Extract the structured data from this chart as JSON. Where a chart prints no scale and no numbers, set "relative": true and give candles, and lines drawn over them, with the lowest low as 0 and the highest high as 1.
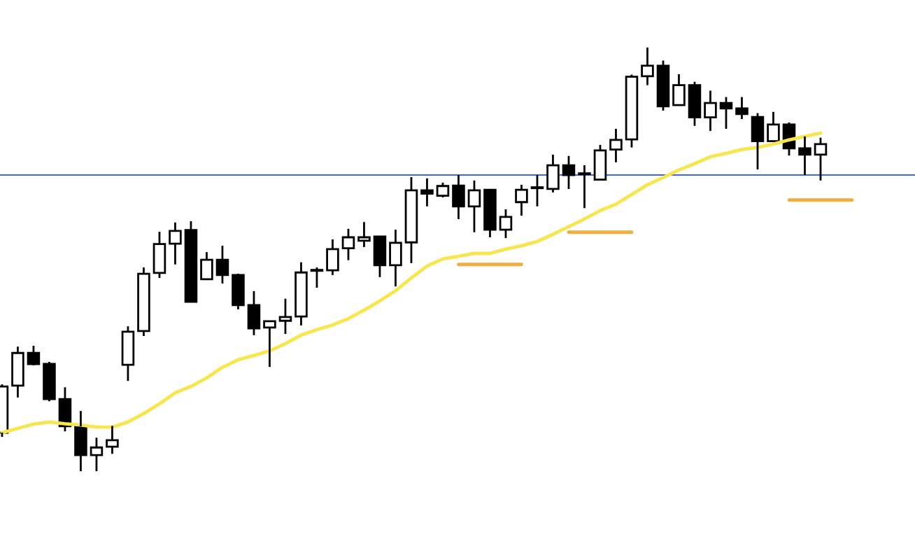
{
  "chart_data": {
    "type": "candlestick",
    "relative": true,
    "categories": [
      null,
      null,
      null,
      null,
      null,
      null,
      null,
      null,
      null,
      null,
      null,
      null,
      null,
      null,
      null,
      null,
      null,
      null,
      null,
      null,
      null,
      null,
      null,
      null,
      null,
      null,
      null,
      null,
      null,
      null,
      null,
      null,
      null,
      null,
      null,
      null,
      null,
      null,
      null,
      null,
      null,
      null,
      null,
      null,
      null,
      null,
      null,
      null,
      null,
      null,
      null,
      null,
      null,
      null,
      null
    ],
    "ohlc": [
      [
        0.091,
        0.205,
        0.081,
        0.2
      ],
      [
        0.202,
        0.294,
        0.174,
        0.279
      ],
      [
        0.279,
        0.296,
        0.25,
        0.253
      ],
      [
        0.253,
        0.258,
        0.165,
        0.17
      ],
      [
        0.17,
        0.198,
        0.094,
        0.106
      ],
      [
        0.106,
        0.142,
        0.0,
        0.038
      ],
      [
        0.038,
        0.079,
        0.0,
        0.056
      ],
      [
        0.058,
        0.107,
        0.041,
        0.073
      ],
      [
        0.251,
        0.342,
        0.213,
        0.329
      ],
      [
        0.331,
        0.481,
        0.319,
        0.466
      ],
      [
        0.468,
        0.565,
        0.456,
        0.536
      ],
      [
        0.537,
        0.587,
        0.488,
        0.567
      ],
      [
        0.569,
        0.59,
        0.4,
        0.4
      ],
      [
        0.453,
        0.517,
        0.453,
        0.499
      ],
      [
        0.499,
        0.532,
        0.443,
        0.463
      ],
      [
        0.463,
        0.466,
        0.382,
        0.392
      ],
      [
        0.392,
        0.425,
        0.321,
        0.337
      ],
      [
        0.339,
        0.354,
        0.246,
        0.354
      ],
      [
        0.355,
        0.407,
        0.324,
        0.364
      ],
      [
        0.365,
        0.493,
        0.344,
        0.469
      ],
      [
        0.474,
        0.481,
        0.433,
        0.473
      ],
      [
        0.474,
        0.547,
        0.463,
        0.524
      ],
      [
        0.526,
        0.572,
        0.498,
        0.552
      ],
      [
        0.544,
        0.588,
        0.529,
        0.552
      ],
      [
        0.554,
        0.554,
        0.458,
        0.486
      ],
      [
        0.486,
        0.57,
        0.436,
        0.539
      ],
      [
        0.54,
        0.694,
        0.491,
        0.663
      ],
      [
        0.663,
        0.691,
        0.625,
        0.655
      ],
      [
        0.65,
        0.681,
        0.646,
        0.673
      ],
      [
        0.674,
        0.699,
        0.595,
        0.625
      ],
      [
        0.625,
        0.686,
        0.564,
        0.663
      ],
      [
        0.664,
        0.666,
        0.552,
        0.57
      ],
      [
        0.57,
        0.618,
        0.55,
        0.6
      ],
      [
        0.635,
        0.676,
        0.603,
        0.664
      ],
      [
        0.668,
        0.699,
        0.625,
        0.668
      ],
      [
        0.666,
        0.747,
        0.658,
        0.722
      ],
      [
        0.722,
        0.744,
        0.666,
        0.699
      ],
      [
        0.702,
        0.722,
        0.621,
        0.701
      ],
      [
        0.688,
        0.77,
        0.688,
        0.757
      ],
      [
        0.759,
        0.808,
        0.729,
        0.782
      ],
      [
        0.783,
        0.936,
        0.764,
        0.931
      ],
      [
        0.932,
        1.0,
        0.911,
        0.957
      ],
      [
        0.957,
        0.969,
        0.851,
        0.861
      ],
      [
        0.864,
        0.937,
        0.864,
        0.911
      ],
      [
        0.911,
        0.919,
        0.815,
        0.835
      ],
      [
        0.835,
        0.898,
        0.803,
        0.869
      ],
      [
        0.869,
        0.883,
        0.808,
        0.856
      ],
      [
        0.856,
        0.883,
        0.831,
        0.843
      ],
      [
        0.836,
        0.845,
        0.712,
        0.779
      ],
      [
        0.779,
        0.848,
        0.779,
        0.818
      ],
      [
        0.818,
        0.823,
        0.745,
        0.762
      ],
      [
        0.762,
        0.79,
        0.699,
        0.747
      ],
      [
        0.747,
        0.787,
        0.686,
        0.772
      ],
      null,
      null
    ],
    "series": [
      {
        "type": "line",
        "color": "#f7e64f",
        "values": [
          0.091,
          0.101,
          0.111,
          0.116,
          0.112,
          0.109,
          0.104,
          0.104,
          0.116,
          0.136,
          0.159,
          0.185,
          0.2,
          0.22,
          0.245,
          0.263,
          0.273,
          0.284,
          0.301,
          0.321,
          0.334,
          0.345,
          0.36,
          0.38,
          0.402,
          0.426,
          0.456,
          0.484,
          0.501,
          0.507,
          0.514,
          0.514,
          0.524,
          0.532,
          0.542,
          0.559,
          0.577,
          0.595,
          0.615,
          0.63,
          0.653,
          0.676,
          0.693,
          0.711,
          0.726,
          0.742,
          0.75,
          0.759,
          0.764,
          0.772,
          0.782,
          0.79,
          0.798,
          null,
          null
        ]
      },
      {
        "type": "line",
        "color": "#f0ad40",
        "values": [
          null,
          null,
          null,
          null,
          null,
          null,
          null,
          null,
          null,
          null,
          null,
          null,
          null,
          null,
          null,
          null,
          null,
          null,
          null,
          null,
          null,
          null,
          null,
          null,
          null,
          null,
          null,
          null,
          null,
          0.488,
          0.488,
          0.488,
          0.488,
          0.488,
          null,
          null,
          null,
          null,
          null,
          null,
          null,
          null,
          null,
          null,
          null,
          null,
          null,
          null,
          null,
          null,
          null,
          null,
          null,
          null,
          null
        ]
      },
      {
        "type": "line",
        "color": "#f0ad40",
        "values": [
          null,
          null,
          null,
          null,
          null,
          null,
          null,
          null,
          null,
          null,
          null,
          null,
          null,
          null,
          null,
          null,
          null,
          null,
          null,
          null,
          null,
          null,
          null,
          null,
          null,
          null,
          null,
          null,
          null,
          null,
          null,
          null,
          null,
          null,
          null,
          null,
          0.564,
          0.564,
          0.564,
          0.564,
          0.564,
          null,
          null,
          null,
          null,
          null,
          null,
          null,
          null,
          null,
          null,
          null,
          null,
          null,
          null
        ]
      },
      {
        "type": "line",
        "color": "#f0ad40",
        "values": [
          null,
          null,
          null,
          null,
          null,
          null,
          null,
          null,
          null,
          null,
          null,
          null,
          null,
          null,
          null,
          null,
          null,
          null,
          null,
          null,
          null,
          null,
          null,
          null,
          null,
          null,
          null,
          null,
          null,
          null,
          null,
          null,
          null,
          null,
          null,
          null,
          null,
          null,
          null,
          null,
          null,
          null,
          null,
          null,
          null,
          null,
          null,
          null,
          null,
          null,
          0.64,
          0.64,
          0.64,
          0.64,
          0.64
        ]
      }
    ],
    "ref_lines": [
      {
        "axis": "y",
        "value": 0.699,
        "color": "#3d64f2"
      }
    ]
  }
}
